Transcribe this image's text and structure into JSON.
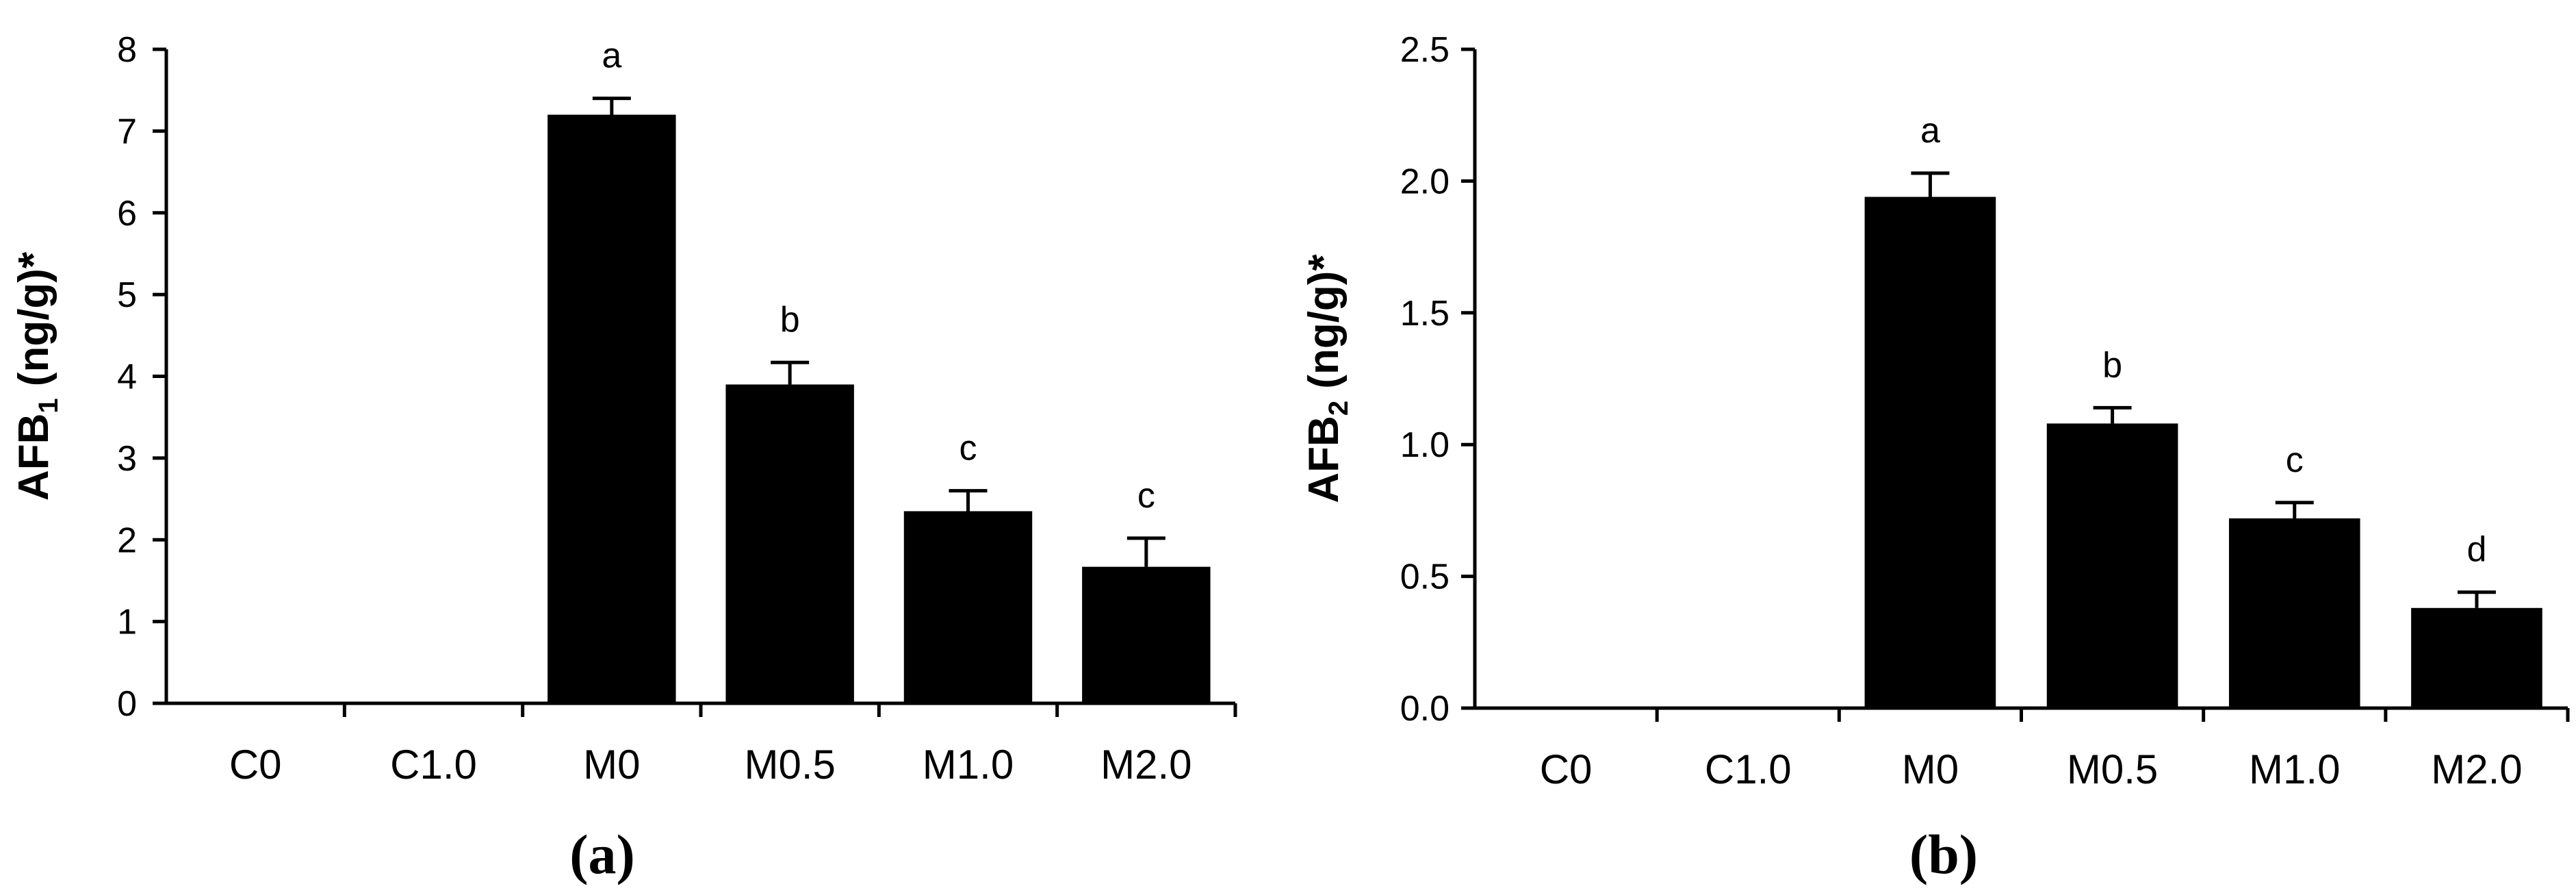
{
  "chart_data": [
    {
      "panel_label_open": "(",
      "panel_label_letter": "a",
      "panel_label_close": ")",
      "type": "bar",
      "categories": [
        "C0",
        "C1.0",
        "M0",
        "M0.5",
        "M1.0",
        "M2.0"
      ],
      "values": [
        0,
        0,
        7.2,
        3.9,
        2.35,
        1.67
      ],
      "errors": [
        0,
        0,
        0.2,
        0.27,
        0.25,
        0.35
      ],
      "significance": [
        "",
        "",
        "a",
        "b",
        "c",
        "c"
      ],
      "ylabel_main": "AFB",
      "ylabel_sub": "1",
      "ylabel_rest": " (ng/g)*",
      "ylim": [
        0,
        8
      ],
      "yticks": [
        "0",
        "1",
        "2",
        "3",
        "4",
        "5",
        "6",
        "7",
        "8"
      ],
      "grid": false,
      "bar_color": "#000000"
    },
    {
      "panel_label_open": "(",
      "panel_label_letter": "b",
      "panel_label_close": ")",
      "type": "bar",
      "categories": [
        "C0",
        "C1.0",
        "M0",
        "M0.5",
        "M1.0",
        "M2.0"
      ],
      "values": [
        0,
        0,
        1.94,
        1.08,
        0.72,
        0.38
      ],
      "errors": [
        0,
        0,
        0.09,
        0.06,
        0.06,
        0.06
      ],
      "significance": [
        "",
        "",
        "a",
        "b",
        "c",
        "d"
      ],
      "ylabel_main": "AFB",
      "ylabel_sub": "2",
      "ylabel_rest": " (ng/g)*",
      "ylim": [
        0,
        2.5
      ],
      "yticks": [
        "0.0",
        "0.5",
        "1.0",
        "1.5",
        "2.0",
        "2.5"
      ],
      "grid": false,
      "bar_color": "#000000"
    }
  ]
}
